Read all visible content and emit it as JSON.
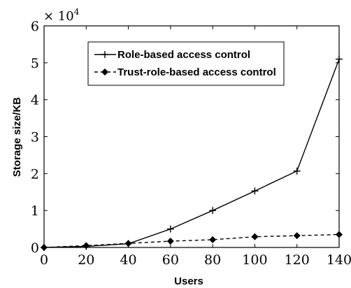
{
  "chart_data": {
    "type": "line",
    "xlabel": "Users",
    "ylabel": "Storage size/KB",
    "y_multiplier_base": "× 10",
    "y_multiplier_exp": "4",
    "xlim": [
      0,
      140
    ],
    "ylim": [
      0,
      6
    ],
    "x_ticks": [
      "0",
      "20",
      "40",
      "60",
      "80",
      "100",
      "120",
      "140"
    ],
    "y_ticks": [
      "0",
      "1",
      "2",
      "3",
      "4",
      "5",
      "6"
    ],
    "legend_position": "top-left",
    "grid": false,
    "series": [
      {
        "name": "Role-based access control",
        "marker": "plus",
        "line_style": "solid",
        "color": "#000000",
        "x": [
          0,
          20,
          40,
          60,
          80,
          100,
          120,
          140
        ],
        "y": [
          0,
          0.03,
          0.1,
          0.5,
          1.0,
          1.53,
          2.07,
          5.1
        ]
      },
      {
        "name": "Trust-role-based access control",
        "marker": "diamond",
        "line_style": "dashed",
        "color": "#000000",
        "x": [
          0,
          20,
          40,
          60,
          80,
          100,
          120,
          140
        ],
        "y": [
          0,
          0.05,
          0.11,
          0.17,
          0.21,
          0.29,
          0.32,
          0.35
        ]
      }
    ]
  }
}
